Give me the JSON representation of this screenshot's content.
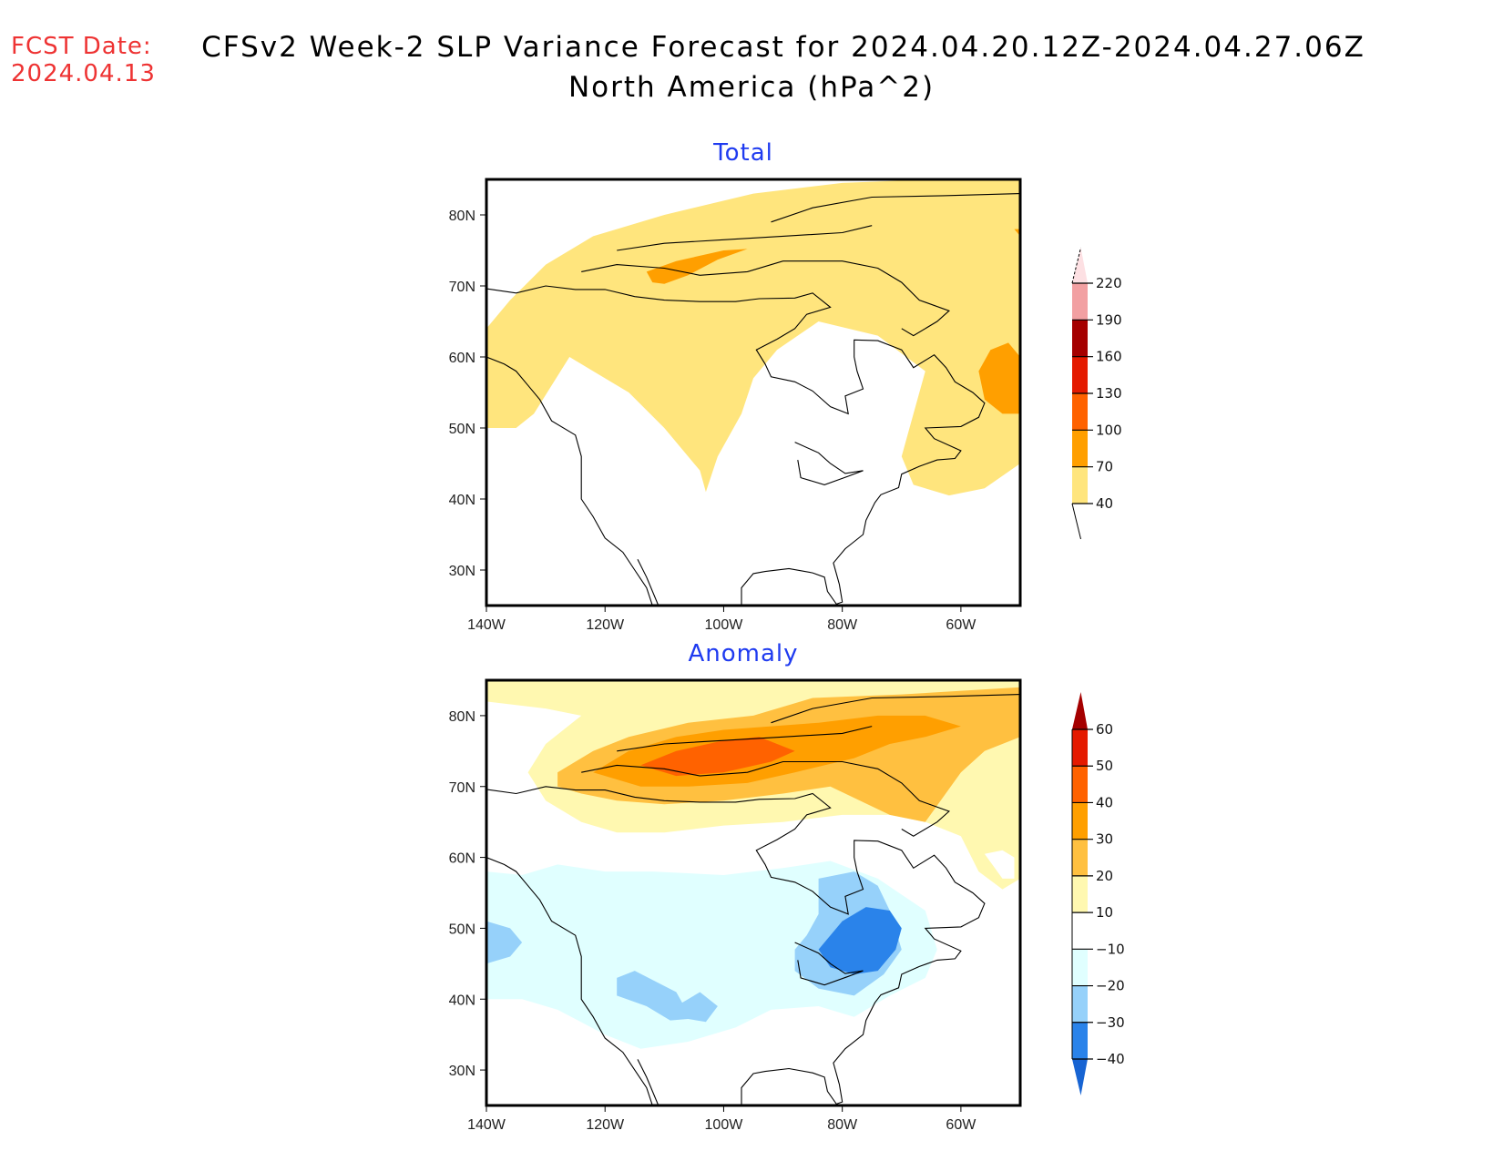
{
  "header": {
    "fcst_label": "FCST Date:",
    "fcst_date": "2024.04.13",
    "title_line1": "CFSv2 Week-2 SLP Variance Forecast for 2024.04.20.12Z-2024.04.27.06Z",
    "title_line2": "North America (hPa^2)"
  },
  "chart_data": [
    {
      "type": "heatmap",
      "title": "Total",
      "units": "hPa^2",
      "region": "North America",
      "lat_ticks": [
        "80N",
        "70N",
        "60N",
        "50N",
        "40N",
        "30N"
      ],
      "lat_values": [
        80,
        70,
        60,
        50,
        40,
        30
      ],
      "lon_ticks": [
        "140W",
        "120W",
        "100W",
        "80W",
        "60W"
      ],
      "lon_values": [
        -140,
        -120,
        -100,
        -80,
        -60
      ],
      "xlim": [
        -140,
        -50
      ],
      "ylim": [
        25,
        85
      ],
      "colorbar": {
        "levels": [
          40,
          70,
          100,
          130,
          160,
          190,
          220
        ],
        "labels": [
          "40",
          "70",
          "100",
          "130",
          "160",
          "190",
          "220"
        ],
        "colors": [
          "#ffe57d",
          "#ff9f00",
          "#ff6200",
          "#e41a00",
          "#a50000",
          "#f2a0a2",
          "#fde0e3"
        ]
      },
      "features": [
        {
          "name": "arctic-band",
          "range": "40-70",
          "description": "Broad band over Alaska, northern Canada, Arctic archipelago, Greenland south tip"
        },
        {
          "name": "arctic-archipelago-max",
          "range": "70-100",
          "lat": 72,
          "lon": -105
        },
        {
          "name": "labrador-max",
          "range": "70-100",
          "lat": 55,
          "lon": -52
        },
        {
          "name": "western-atlantic",
          "range": "40-70",
          "lat": 43,
          "lon": -60
        },
        {
          "name": "central-plains-tongue",
          "range": "40-70",
          "lat": 45,
          "lon": -103
        }
      ]
    },
    {
      "type": "heatmap",
      "title": "Anomaly",
      "units": "hPa^2",
      "region": "North America",
      "lat_ticks": [
        "80N",
        "70N",
        "60N",
        "50N",
        "40N",
        "30N"
      ],
      "lat_values": [
        80,
        70,
        60,
        50,
        40,
        30
      ],
      "lon_ticks": [
        "140W",
        "120W",
        "100W",
        "80W",
        "60W"
      ],
      "lon_values": [
        -140,
        -120,
        -100,
        -80,
        -60
      ],
      "xlim": [
        -140,
        -50
      ],
      "ylim": [
        25,
        85
      ],
      "colorbar": {
        "levels": [
          -40,
          -30,
          -20,
          -10,
          10,
          20,
          30,
          40,
          50,
          60
        ],
        "labels": [
          "-40",
          "-30",
          "-20",
          "-10",
          "10",
          "20",
          "30",
          "40",
          "50",
          "60"
        ],
        "colors": [
          "#1764d3",
          "#2a83ea",
          "#96d1fa",
          "#e0ffff",
          "#ffffff",
          "#fff8b0",
          "#ffc040",
          "#ff9f00",
          "#ff6200",
          "#e41a00",
          "#a50000"
        ]
      },
      "features": [
        {
          "name": "arctic-positive",
          "range": "40-50",
          "lat": 73,
          "lon": -100
        },
        {
          "name": "arctic-positive-band",
          "range": "20-40",
          "lat": 74,
          "lon": -85
        },
        {
          "name": "hudson-great-lakes-negative",
          "range": "-40 to -30",
          "lat": 48,
          "lon": -77
        },
        {
          "name": "rockies-negative",
          "range": "-30 to -20",
          "lat": 41,
          "lon": -112
        },
        {
          "name": "pacific-negative",
          "range": "-30 to -20",
          "lat": 48,
          "lon": -138
        },
        {
          "name": "labrador-positive",
          "range": "20-30",
          "lat": 59,
          "lon": -55
        }
      ]
    }
  ]
}
